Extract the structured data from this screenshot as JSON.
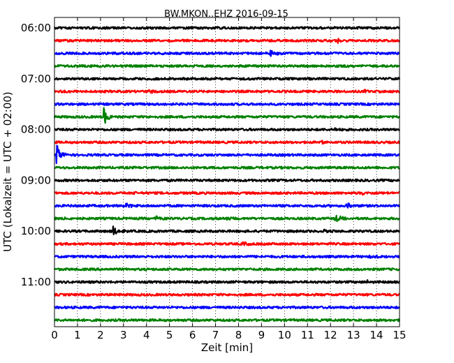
{
  "chart_data": {
    "type": "line",
    "title": "BW.MKON..EHZ 2016-09-15",
    "xlabel": "Zeit  [min]",
    "ylabel": "UTC (Lokalzeit = UTC + 02:00)",
    "xlim": [
      0,
      15
    ],
    "x_ticks": [
      "0",
      "1",
      "2",
      "3",
      "4",
      "5",
      "6",
      "7",
      "8",
      "9",
      "10",
      "11",
      "12",
      "13",
      "14",
      "15"
    ],
    "y_ticks": [
      "06:00",
      "07:00",
      "08:00",
      "09:00",
      "10:00",
      "11:00"
    ],
    "grid": true,
    "colors": [
      "#000000",
      "#ff0000",
      "#0000ff",
      "#008000"
    ],
    "traces": [
      {
        "start": "06:00",
        "color": "#000000",
        "events": []
      },
      {
        "start": "06:15",
        "color": "#ff0000",
        "events": [
          {
            "t": 12.3,
            "amp": 0.3
          }
        ]
      },
      {
        "start": "06:30",
        "color": "#0000ff",
        "events": [
          {
            "t": 9.35,
            "amp": 0.9
          }
        ]
      },
      {
        "start": "06:45",
        "color": "#008000",
        "events": []
      },
      {
        "start": "07:00",
        "color": "#000000",
        "events": []
      },
      {
        "start": "07:15",
        "color": "#ff0000",
        "events": [
          {
            "t": 4.1,
            "amp": 0.35
          },
          {
            "t": 13.5,
            "amp": 0.2
          }
        ]
      },
      {
        "start": "07:30",
        "color": "#0000ff",
        "events": []
      },
      {
        "start": "07:45",
        "color": "#008000",
        "events": [
          {
            "t": 2.15,
            "amp": 1.5
          }
        ]
      },
      {
        "start": "08:00",
        "color": "#000000",
        "events": [
          {
            "t": 12.2,
            "amp": 0.2
          }
        ]
      },
      {
        "start": "08:15",
        "color": "#ff0000",
        "events": [
          {
            "t": 11.5,
            "amp": 0.4
          }
        ]
      },
      {
        "start": "08:30",
        "color": "#0000ff",
        "events": [
          {
            "t": 0.1,
            "amp": 1.6
          }
        ]
      },
      {
        "start": "08:45",
        "color": "#008000",
        "events": [
          {
            "t": 11.9,
            "amp": 0.2
          }
        ]
      },
      {
        "start": "09:00",
        "color": "#000000",
        "events": []
      },
      {
        "start": "09:15",
        "color": "#ff0000",
        "events": [
          {
            "t": 3.5,
            "amp": 0.25
          },
          {
            "t": 13.4,
            "amp": 0.3
          }
        ]
      },
      {
        "start": "09:30",
        "color": "#0000ff",
        "events": [
          {
            "t": 3.1,
            "amp": 0.5
          },
          {
            "t": 12.7,
            "amp": 0.5
          }
        ]
      },
      {
        "start": "09:45",
        "color": "#008000",
        "events": [
          {
            "t": 0.4,
            "amp": 0.3
          },
          {
            "t": 4.45,
            "amp": 0.6
          },
          {
            "t": 7.45,
            "amp": 0.4
          },
          {
            "t": 12.2,
            "amp": 0.8
          }
        ]
      },
      {
        "start": "10:00",
        "color": "#000000",
        "events": [
          {
            "t": 2.55,
            "amp": 0.9
          },
          {
            "t": 11.7,
            "amp": 0.35
          }
        ]
      },
      {
        "start": "10:15",
        "color": "#ff0000",
        "events": [
          {
            "t": 8.2,
            "amp": 0.3
          }
        ]
      },
      {
        "start": "10:30",
        "color": "#0000ff",
        "events": [
          {
            "t": 13.7,
            "amp": 0.5
          }
        ]
      },
      {
        "start": "10:45",
        "color": "#008000",
        "events": []
      },
      {
        "start": "11:00",
        "color": "#000000",
        "events": [
          {
            "t": 13.6,
            "amp": 0.2
          }
        ]
      },
      {
        "start": "11:15",
        "color": "#ff0000",
        "events": []
      },
      {
        "start": "11:30",
        "color": "#0000ff",
        "events": []
      },
      {
        "start": "11:45",
        "color": "#008000",
        "events": []
      }
    ]
  }
}
